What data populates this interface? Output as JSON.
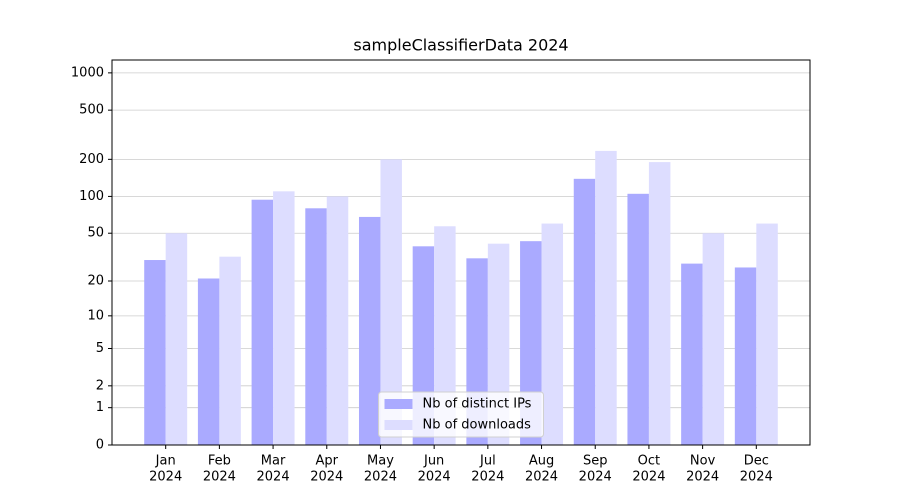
{
  "chart_data": {
    "type": "bar",
    "title": "sampleClassifierData 2024",
    "categories": [
      [
        "Jan",
        "2024"
      ],
      [
        "Feb",
        "2024"
      ],
      [
        "Mar",
        "2024"
      ],
      [
        "Apr",
        "2024"
      ],
      [
        "May",
        "2024"
      ],
      [
        "Jun",
        "2024"
      ],
      [
        "Jul",
        "2024"
      ],
      [
        "Aug",
        "2024"
      ],
      [
        "Sep",
        "2024"
      ],
      [
        "Oct",
        "2024"
      ],
      [
        "Nov",
        "2024"
      ],
      [
        "Dec",
        "2024"
      ]
    ],
    "series": [
      {
        "name": "Nb of distinct IPs",
        "color": "#aaaaff",
        "values": [
          30,
          21,
          94,
          80,
          68,
          39,
          31,
          43,
          139,
          105,
          28,
          26
        ]
      },
      {
        "name": "Nb of downloads",
        "color": "#ddddff",
        "values": [
          50,
          32,
          110,
          100,
          200,
          57,
          41,
          60,
          234,
          190,
          50,
          60
        ]
      }
    ],
    "yscale": "log1p",
    "ylim": [
      0,
      1270
    ],
    "yticks": [
      0,
      1,
      2,
      5,
      10,
      20,
      50,
      100,
      200,
      500,
      1000
    ],
    "grid": true,
    "legend": "lower center"
  }
}
